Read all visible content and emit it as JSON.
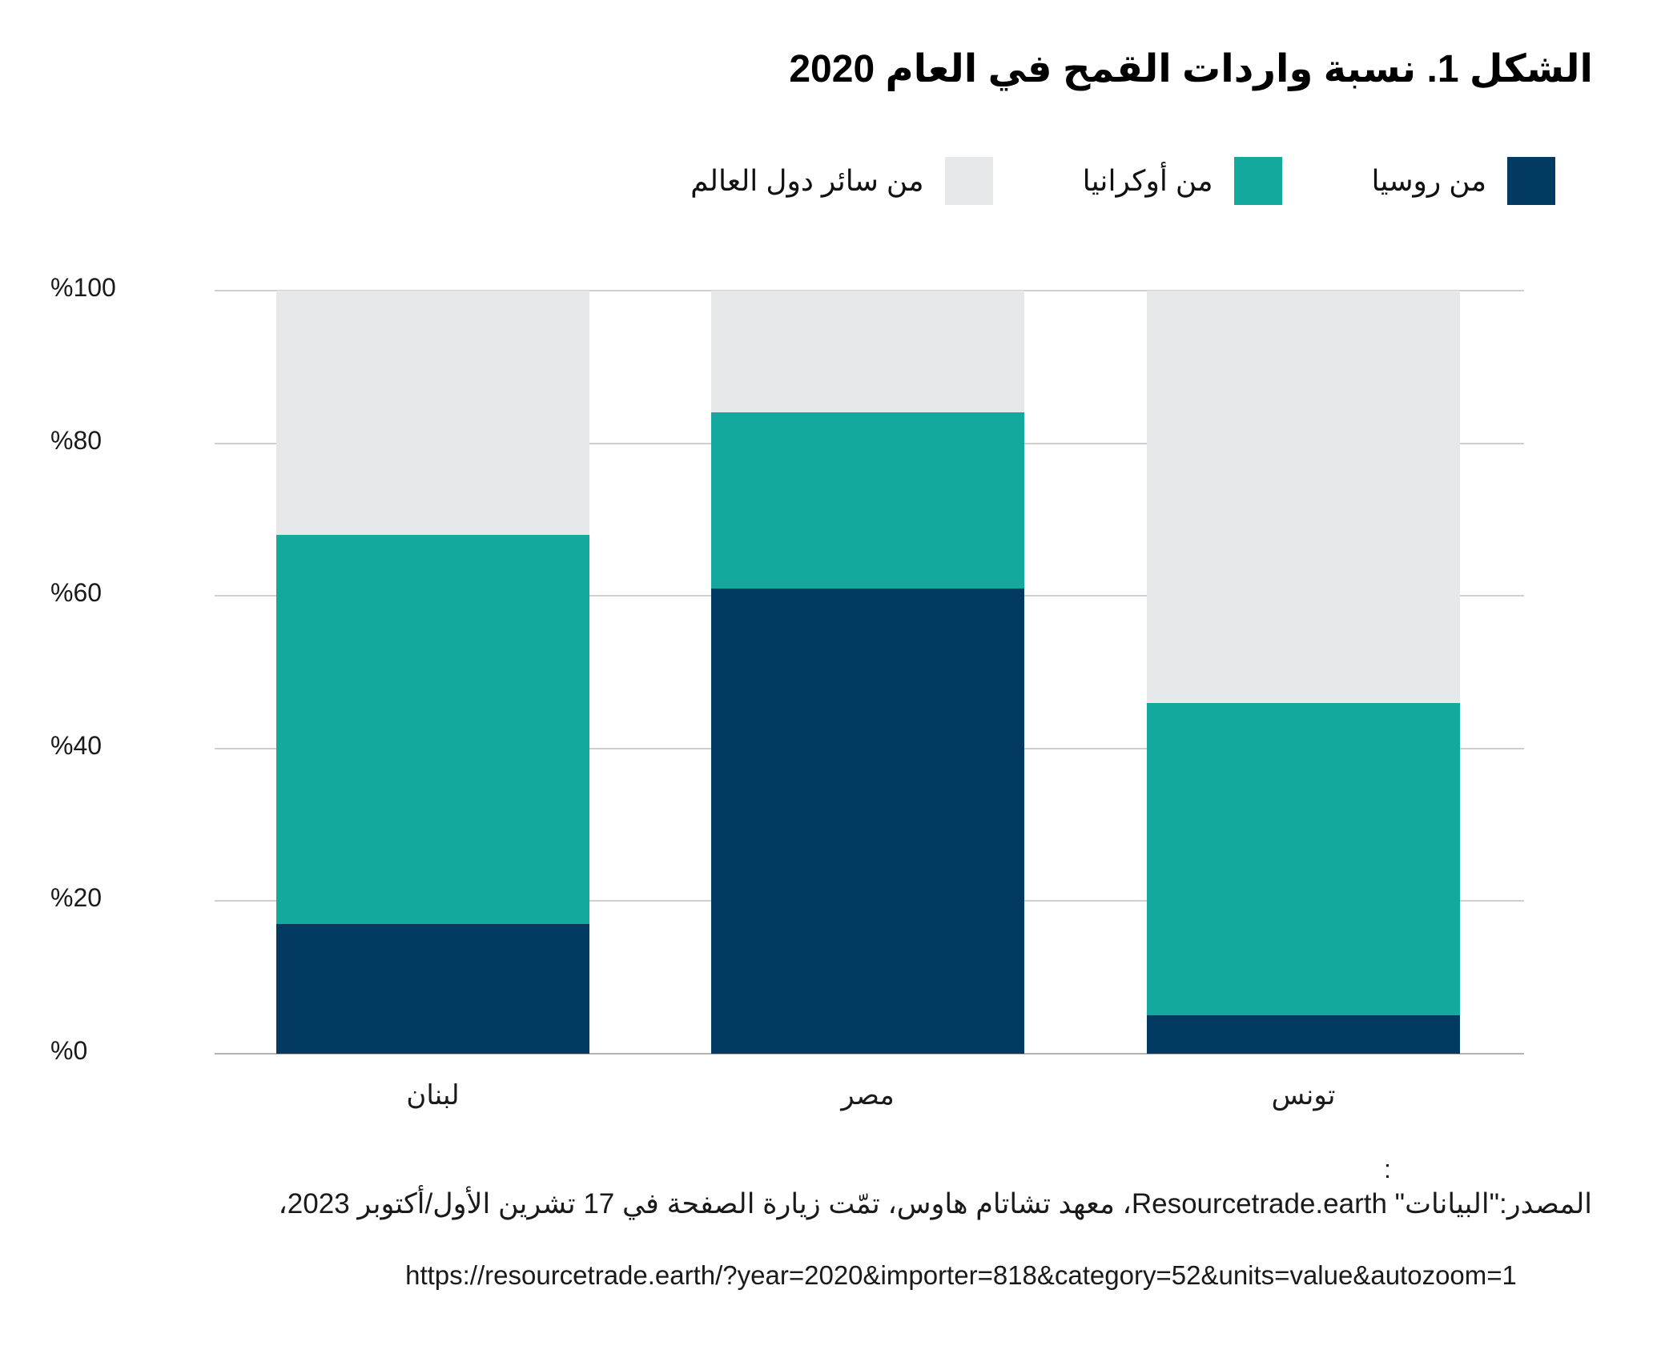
{
  "title": "الشكل 1. نسبة واردات القمح في العام 2020",
  "chart_data": {
    "type": "bar",
    "stacked": true,
    "title": "الشكل 1. نسبة واردات القمح في العام 2020",
    "categories": [
      "لبنان",
      "مصر",
      "تونس"
    ],
    "series": [
      {
        "name": "من روسيا",
        "key": "russia",
        "color": "#033a62",
        "values": [
          17,
          61,
          5
        ]
      },
      {
        "name": "من أوكرانيا",
        "key": "ukraine",
        "color": "#14a99d",
        "values": [
          51,
          23,
          41
        ]
      },
      {
        "name": "من سائر دول العالم",
        "key": "rest-of-world",
        "color": "#e7e8e9",
        "values": [
          32,
          16,
          54
        ]
      }
    ],
    "ylim": [
      0,
      100
    ],
    "y_ticks": [
      "%0",
      "%20",
      "%40",
      "%60",
      "%80",
      "%100"
    ],
    "grid": true,
    "legend_position": "top-right",
    "units": "percent"
  },
  "footer": {
    "stray_colon": ":",
    "source_line": "المصدر:\"البيانات\" Resourcetrade.earth، معهد تشاتام هاوس، تمّت زيارة الصفحة في 17 تشرين الأول/أكتوبر 2023،",
    "url_line": "https://resourcetrade.earth/?year=2020&importer=818&category=52&units=value&autozoom=1"
  }
}
